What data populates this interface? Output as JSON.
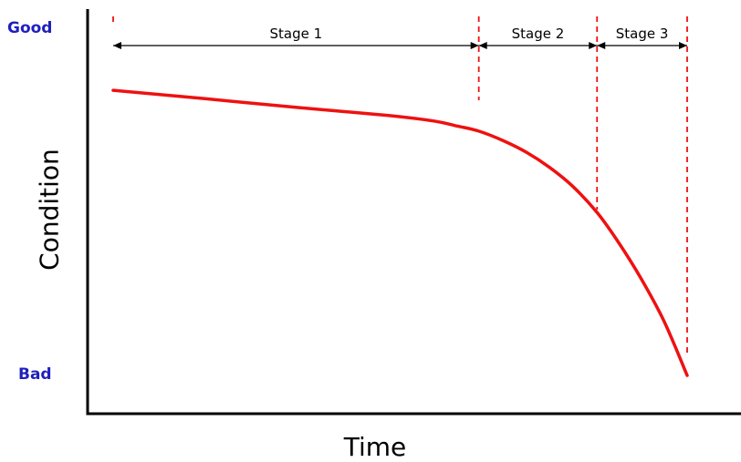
{
  "chart_data": {
    "type": "line",
    "xlabel": "Time",
    "ylabel": "Condition",
    "y_top_label": "Good",
    "y_bottom_label": "Bad",
    "y_label_color": "#1f1fbf",
    "line_color": "#ee1111",
    "divider_color": "#ee1111",
    "axis_color": "#000000",
    "grid": false,
    "stages": [
      {
        "name": "Stage 1",
        "start": 0.0,
        "end": 0.637
      },
      {
        "name": "Stage 2",
        "start": 0.637,
        "end": 0.843
      },
      {
        "name": "Stage 3",
        "start": 0.843,
        "end": 1.0
      }
    ],
    "series": [
      {
        "x": [
          0.0,
          0.16,
          0.32,
          0.48,
          0.56,
          0.6,
          0.637,
          0.68,
          0.72,
          0.76,
          0.8,
          0.843,
          0.88,
          0.92,
          0.96,
          1.0
        ],
        "y": [
          0.915,
          0.888,
          0.86,
          0.834,
          0.816,
          0.8,
          0.784,
          0.753,
          0.716,
          0.668,
          0.608,
          0.523,
          0.428,
          0.31,
          0.173,
          0.0
        ]
      }
    ]
  }
}
